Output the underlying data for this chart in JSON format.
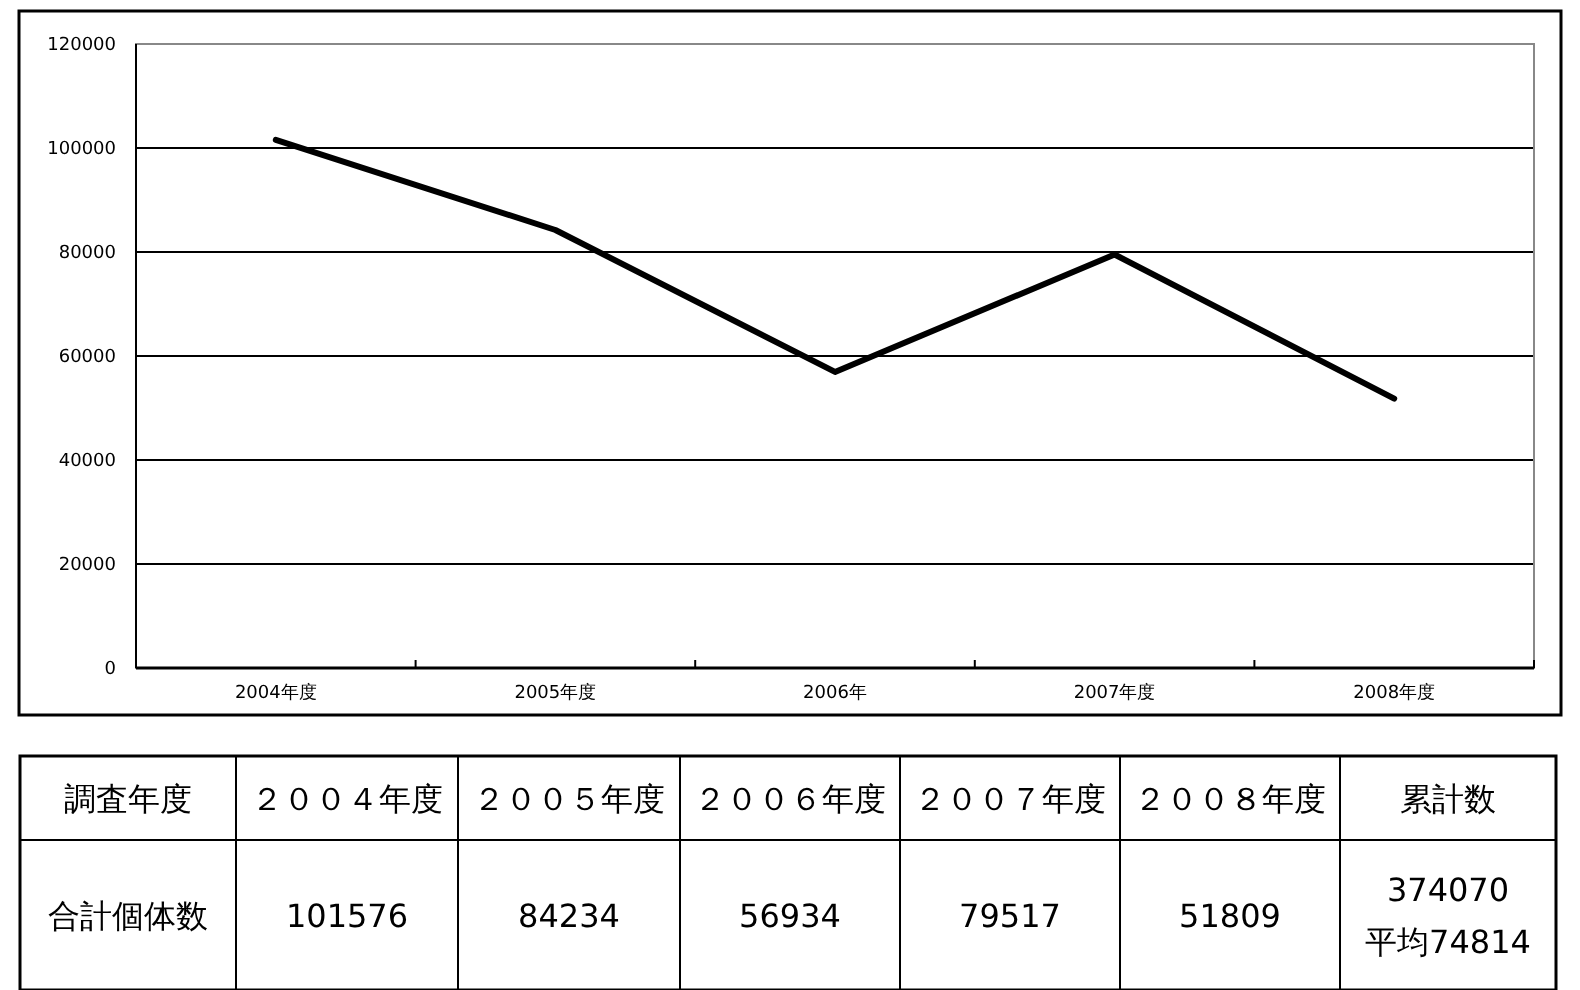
{
  "chart_data": {
    "type": "line",
    "categories": [
      "2004年度",
      "2005年度",
      "2006年",
      "2007年度",
      "2008年度"
    ],
    "series": [
      {
        "color": "#000000",
        "values": [
          101576,
          84234,
          56934,
          79517,
          51809
        ]
      }
    ],
    "ylim": [
      0,
      120000
    ],
    "yticks": [
      0,
      20000,
      40000,
      60000,
      80000,
      100000,
      120000
    ],
    "grid": "y",
    "marker": "none",
    "line_style": "solid",
    "annotations": [
      "調査年度",
      "２００４年度",
      "２００５年度",
      "２００６年度",
      "２００７年度",
      "２００８年度",
      "累計数",
      "合計個体数",
      "374070",
      "平均74814",
      "101576",
      "84234",
      "56934",
      "79517",
      "51809"
    ]
  }
}
